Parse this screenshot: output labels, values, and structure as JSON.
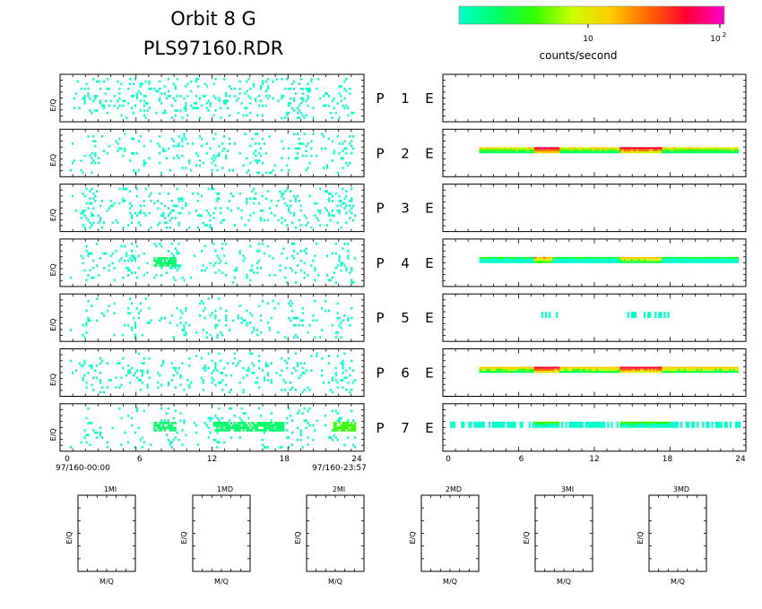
{
  "header": {
    "title": "Orbit 8 G",
    "subtitle": "PLS97160.RDR"
  },
  "colorbar": {
    "label": "counts/second",
    "tick_10": "10",
    "tick_100_base": "10",
    "tick_100_exp": "2",
    "colors": [
      "#00ffcc",
      "#00ff66",
      "#33ff00",
      "#ccff00",
      "#ffcc00",
      "#ff6600",
      "#ff0033",
      "#ff00cc"
    ]
  },
  "ylabel": "E/Q",
  "time_axis": {
    "ticks": [
      "0",
      "6",
      "12",
      "18",
      "24"
    ],
    "start_label": "97/160-00:00",
    "end_label": "97/160-23:57"
  },
  "mass_panels": {
    "titles": [
      "1MI",
      "1MD",
      "2MI",
      "2MD",
      "3MI",
      "3MD"
    ],
    "xlabel": "M/Q",
    "ylabel": "E/Q"
  },
  "chart_data": {
    "type": "heatmap",
    "x": "hours (0-24)",
    "rows": [
      {
        "p": "P",
        "n": "1",
        "e": "E",
        "left_density": 0.1,
        "left_bands": [],
        "right": []
      },
      {
        "p": "P",
        "n": "2",
        "e": "E",
        "left_density": 0.06,
        "left_bands": [],
        "right": [
          {
            "from": 2.5,
            "to": 23.8,
            "level": 0.55
          },
          {
            "from": 7,
            "to": 9,
            "level": 0.95
          },
          {
            "from": 14,
            "to": 17.5,
            "level": 0.9
          }
        ]
      },
      {
        "p": "P",
        "n": "3",
        "e": "E",
        "left_density": 0.09,
        "left_bands": [],
        "right": []
      },
      {
        "p": "P",
        "n": "4",
        "e": "E",
        "left_density": 0.07,
        "left_bands": [
          {
            "from": 7,
            "to": 9,
            "level": 0.15
          }
        ],
        "right": [
          {
            "from": 2.5,
            "to": 23.8,
            "level": 0.25
          },
          {
            "from": 7,
            "to": 8.5,
            "level": 0.65
          },
          {
            "from": 14,
            "to": 17.5,
            "level": 0.6
          }
        ]
      },
      {
        "p": "P",
        "n": "5",
        "e": "E",
        "left_density": 0.05,
        "left_bands": [],
        "right": [
          {
            "from": 7,
            "to": 9,
            "level": 0.05
          },
          {
            "from": 14.5,
            "to": 18,
            "level": 0.05
          }
        ]
      },
      {
        "p": "P",
        "n": "6",
        "e": "E",
        "left_density": 0.08,
        "left_bands": [],
        "right": [
          {
            "from": 2.5,
            "to": 23.8,
            "level": 0.6
          },
          {
            "from": 7,
            "to": 9,
            "level": 0.9
          },
          {
            "from": 14,
            "to": 17.5,
            "level": 0.9
          }
        ]
      },
      {
        "p": "P",
        "n": "7",
        "e": "E",
        "left_density": 0.06,
        "left_bands": [
          {
            "from": 7,
            "to": 9,
            "level": 0.2
          },
          {
            "from": 12,
            "to": 18,
            "level": 0.15
          },
          {
            "from": 22,
            "to": 24,
            "level": 0.25
          }
        ],
        "right": [
          {
            "from": 0,
            "to": 24,
            "level": 0.1
          },
          {
            "from": 7,
            "to": 9,
            "level": 0.3
          },
          {
            "from": 14,
            "to": 18,
            "level": 0.3
          }
        ]
      }
    ]
  }
}
